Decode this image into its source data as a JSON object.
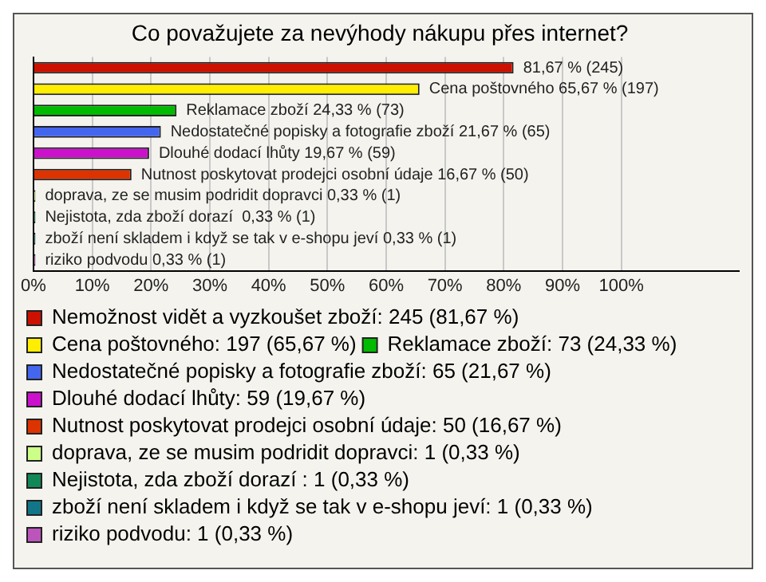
{
  "chart_data": {
    "type": "bar",
    "orientation": "horizontal",
    "title": "Co považujete za nevýhody nákupu přes internet?",
    "categories": [
      null,
      null,
      null,
      null,
      null,
      null,
      null,
      null,
      null,
      null
    ],
    "xlim": [
      0,
      120
    ],
    "xticks": [
      {
        "value": 0,
        "label": "0%"
      },
      {
        "value": 10,
        "label": "10%"
      },
      {
        "value": 20,
        "label": "20%"
      },
      {
        "value": 30,
        "label": "30%"
      },
      {
        "value": 40,
        "label": "40%"
      },
      {
        "value": 50,
        "label": "50%"
      },
      {
        "value": 60,
        "label": "60%"
      },
      {
        "value": 70,
        "label": "70%"
      },
      {
        "value": 80,
        "label": "80%"
      },
      {
        "value": 90,
        "label": "90%"
      },
      {
        "value": 100,
        "label": "100%"
      }
    ],
    "tick_labels": "x",
    "grid": "x",
    "legend": "bottom",
    "series": [
      {
        "name": "Nemožnost vidět a vyzkoušet zboží: 245 (81,67 %)",
        "color": "#cc1100",
        "values": [
          81.67,
          null,
          null,
          null,
          null,
          null,
          null,
          null,
          null,
          null
        ],
        "value_labels": [
          "81,67 % (245)",
          null,
          null,
          null,
          null,
          null,
          null,
          null,
          null,
          null
        ]
      },
      {
        "name": "Cena poštovného: 197 (65,67 %)",
        "color": "#ffee00",
        "values": [
          null,
          65.67,
          null,
          null,
          null,
          null,
          null,
          null,
          null,
          null
        ],
        "value_labels": [
          null,
          "Cena poštovného 65,67 % (197)",
          null,
          null,
          null,
          null,
          null,
          null,
          null,
          null
        ]
      },
      {
        "name": "Reklamace zboží: 73 (24,33 %)",
        "color": "#00bb00",
        "values": [
          null,
          null,
          24.33,
          null,
          null,
          null,
          null,
          null,
          null,
          null
        ],
        "value_labels": [
          null,
          null,
          "Reklamace zboží 24,33 % (73)",
          null,
          null,
          null,
          null,
          null,
          null,
          null
        ]
      },
      {
        "name": "Nedostatečné popisky a fotografie zboží: 65 (21,67 %)",
        "color": "#4466ee",
        "values": [
          null,
          null,
          null,
          21.67,
          null,
          null,
          null,
          null,
          null,
          null
        ],
        "value_labels": [
          null,
          null,
          null,
          "Nedostatečné popisky a fotografie zboží 21,67 % (65)",
          null,
          null,
          null,
          null,
          null,
          null
        ]
      },
      {
        "name": "Dlouhé dodací lhůty: 59 (19,67 %)",
        "color": "#cc11cc",
        "values": [
          null,
          null,
          null,
          null,
          19.67,
          null,
          null,
          null,
          null,
          null
        ],
        "value_labels": [
          null,
          null,
          null,
          null,
          "Dlouhé dodací lhůty 19,67 % (59)",
          null,
          null,
          null,
          null,
          null
        ]
      },
      {
        "name": "Nutnost poskytovat prodejci osobní údaje: 50 (16,67 %)",
        "color": "#dd3300",
        "values": [
          null,
          null,
          null,
          null,
          null,
          16.67,
          null,
          null,
          null,
          null
        ],
        "value_labels": [
          null,
          null,
          null,
          null,
          null,
          "Nutnost poskytovat prodejci osobní údaje 16,67 % (50)",
          null,
          null,
          null,
          null
        ]
      },
      {
        "name": "doprava, ze se musim podridit dopravci: 1 (0,33 %)",
        "color": "#ccff88",
        "values": [
          null,
          null,
          null,
          null,
          null,
          null,
          0.33,
          null,
          null,
          null
        ],
        "value_labels": [
          null,
          null,
          null,
          null,
          null,
          null,
          "doprava, ze se musim podridit dopravci 0,33 % (1)",
          null,
          null,
          null
        ]
      },
      {
        "name": "Nejistota, zda zboží dorazí : 1 (0,33 %)",
        "color": "#118855",
        "values": [
          null,
          null,
          null,
          null,
          null,
          null,
          null,
          0.33,
          null,
          null
        ],
        "value_labels": [
          null,
          null,
          null,
          null,
          null,
          null,
          null,
          "Nejistota, zda zboží dorazí  0,33 % (1)",
          null,
          null
        ]
      },
      {
        "name": "zboží není skladem i když se tak v e-shopu jeví: 1 (0,33 %)",
        "color": "#117788",
        "values": [
          null,
          null,
          null,
          null,
          null,
          null,
          null,
          null,
          0.33,
          null
        ],
        "value_labels": [
          null,
          null,
          null,
          null,
          null,
          null,
          null,
          null,
          "zboží není skladem i když se tak v e-shopu jeví 0,33 % (1)",
          null
        ]
      },
      {
        "name": "riziko podvodu: 1 (0,33 %)",
        "color": "#bb55bb",
        "values": [
          null,
          null,
          null,
          null,
          null,
          null,
          null,
          null,
          null,
          0.33
        ],
        "value_labels": [
          null,
          null,
          null,
          null,
          null,
          null,
          null,
          null,
          null,
          "riziko podvodu 0,33 % (1)"
        ]
      }
    ]
  }
}
